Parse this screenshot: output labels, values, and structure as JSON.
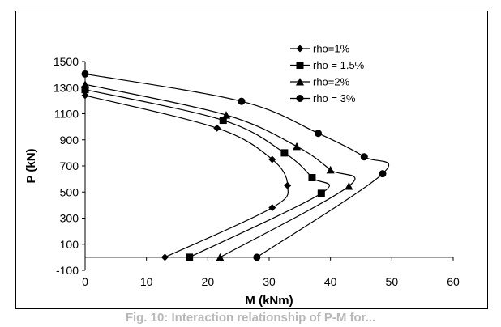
{
  "chart_data": {
    "type": "line",
    "xlabel": "M  (kNm)",
    "ylabel": "P (kN)",
    "xlim": [
      0,
      60
    ],
    "ylim": [
      -100,
      1500
    ],
    "xticks": [
      0,
      10,
      20,
      30,
      40,
      50,
      60
    ],
    "yticks": [
      -100,
      100,
      300,
      500,
      700,
      900,
      1100,
      1300,
      1500
    ],
    "grid": false,
    "legend_position": "top-right",
    "series": [
      {
        "name": "rho=1%",
        "marker": "diamond",
        "color": "#000000",
        "x": [
          0,
          21.5,
          30.5,
          33,
          30.5,
          13
        ],
        "y": [
          1240,
          990,
          750,
          550,
          380,
          0
        ]
      },
      {
        "name": "rho = 1.5%",
        "marker": "square",
        "color": "#000000",
        "x": [
          0,
          22.5,
          32.5,
          37,
          38.5,
          17
        ],
        "y": [
          1285,
          1050,
          800,
          610,
          490,
          0
        ]
      },
      {
        "name": "rho=2%",
        "marker": "triangle",
        "color": "#000000",
        "x": [
          0,
          23,
          34.5,
          40,
          43,
          22
        ],
        "y": [
          1325,
          1090,
          850,
          670,
          545,
          0
        ]
      },
      {
        "name": "rho = 3%",
        "marker": "circle",
        "color": "#000000",
        "x": [
          0,
          25.5,
          38,
          45.5,
          48.5,
          28
        ],
        "y": [
          1405,
          1195,
          950,
          770,
          640,
          0
        ]
      }
    ]
  },
  "caption": "Fig. 10: Interaction relationship of P-M for..."
}
